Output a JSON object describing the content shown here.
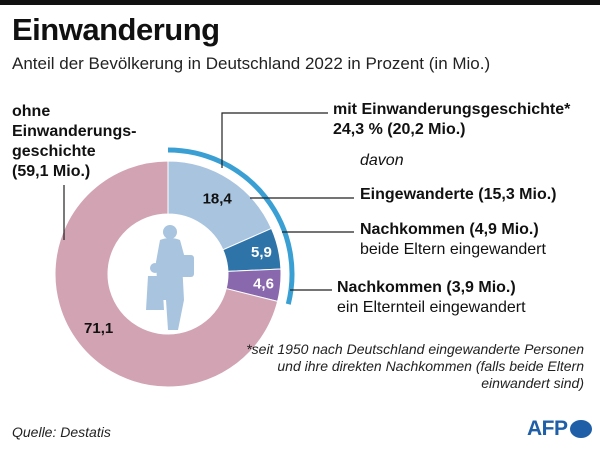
{
  "title": "Einwanderung",
  "subtitle": "Anteil der Bevölkerung in Deutschland 2022 in Prozent (in Mio.)",
  "labels": {
    "ohne": [
      "ohne",
      "Einwanderungs-",
      "geschichte",
      "(59,1 Mio.)"
    ],
    "mit_line1": "mit Einwanderungsgeschichte*",
    "mit_line2": "24,3 % (20,2 Mio.)",
    "davon": "davon",
    "eingewanderte": "Eingewanderte (15,3 Mio.)",
    "nk_beide_line1": "Nachkommen (4,9 Mio.)",
    "nk_beide_line2": "beide Eltern eingewandert",
    "nk_einer_line1": "Nachkommen (3,9 Mio.)",
    "nk_einer_line2": "ein Elternteil eingewandert"
  },
  "footnote": "*seit 1950 nach Deutschland eingewanderte Personen und ihre direkten Nachkommen (falls beide Eltern einwandert sind)",
  "source": "Quelle: Destatis",
  "logo": "AFP",
  "chart_data": {
    "type": "pie",
    "variant": "donut",
    "slices": [
      {
        "label": "Eingewanderte (15,3 Mio.)",
        "value": 18.4,
        "display": "18,4",
        "color": "#a9c4df"
      },
      {
        "label": "Nachkommen (4,9 Mio.) beide Eltern eingewandert",
        "value": 5.9,
        "display": "5,9",
        "color": "#2e74a8"
      },
      {
        "label": "Nachkommen (3,9 Mio.) ein Elternteil eingewandert",
        "value": 4.6,
        "display": "4,6",
        "color": "#8a68ad"
      },
      {
        "label": "ohne Einwanderungsgeschichte (59,1 Mio.)",
        "value": 71.1,
        "display": "71,1",
        "color": "#d2a3b2"
      }
    ],
    "highlight_arc": {
      "label": "mit Einwanderungsgeschichte* 24,3 % (20,2 Mio.)",
      "color": "#3aa0d4"
    }
  }
}
